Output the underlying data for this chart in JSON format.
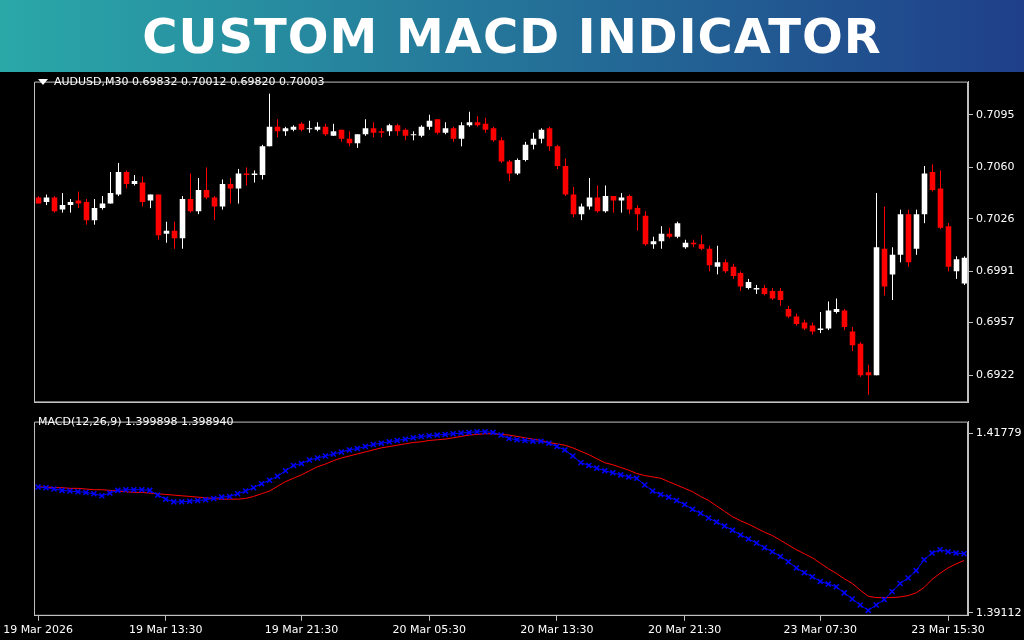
{
  "chart_data": [
    {
      "type": "candlestick",
      "title": "AUDUSD,M30 0.69832 0.70012 0.69820 0.70003",
      "annotations": [
        "CUSTOM MACD INDICATOR"
      ],
      "categories": [
        null,
        null,
        null,
        null,
        null,
        null,
        null,
        null,
        null,
        null,
        null,
        null,
        null,
        null,
        null,
        null,
        null,
        null,
        null,
        null,
        null,
        null,
        null,
        null,
        null,
        null,
        null,
        null,
        null,
        null,
        null,
        null,
        null,
        null,
        null,
        null,
        null,
        null,
        null,
        null,
        null,
        null,
        null,
        null,
        null,
        null,
        null,
        null,
        null,
        null,
        null,
        null,
        null,
        null,
        null,
        null,
        null,
        null,
        null,
        null,
        null,
        null,
        null,
        null,
        null,
        null,
        null,
        null,
        null,
        null,
        null,
        null,
        null,
        null,
        null,
        null,
        null,
        null,
        null,
        null,
        null,
        null,
        null,
        null,
        null,
        null,
        null,
        null,
        null,
        null,
        null,
        null,
        null,
        null,
        null,
        null,
        null,
        null,
        null,
        null,
        null,
        null,
        null,
        null,
        null,
        null,
        null,
        null,
        null,
        null,
        null,
        null,
        null,
        null,
        null,
        null,
        null
      ],
      "ohlc": [
        [
          0.704,
          0.7041,
          0.7036,
          0.7036
        ],
        [
          0.7037,
          0.7042,
          0.7035,
          0.704
        ],
        [
          0.704,
          0.7041,
          0.703,
          0.7031
        ],
        [
          0.7032,
          0.7043,
          0.703,
          0.7035
        ],
        [
          0.7035,
          0.7039,
          0.703,
          0.7037
        ],
        [
          0.7038,
          0.7044,
          0.7033,
          0.7036
        ],
        [
          0.7037,
          0.7039,
          0.7022,
          0.7025
        ],
        [
          0.7025,
          0.7039,
          0.7022,
          0.7033
        ],
        [
          0.7033,
          0.7041,
          0.7032,
          0.7036
        ],
        [
          0.7036,
          0.7057,
          0.7036,
          0.7043
        ],
        [
          0.7042,
          0.7063,
          0.7041,
          0.7057
        ],
        [
          0.7057,
          0.7058,
          0.7046,
          0.7049
        ],
        [
          0.7049,
          0.7055,
          0.7048,
          0.7051
        ],
        [
          0.705,
          0.7054,
          0.7034,
          0.7037
        ],
        [
          0.7038,
          0.7042,
          0.7033,
          0.7042
        ],
        [
          0.7042,
          0.7042,
          0.7012,
          0.7015
        ],
        [
          0.7016,
          0.7024,
          0.701,
          0.7018
        ],
        [
          0.7018,
          0.7024,
          0.7006,
          0.7013
        ],
        [
          0.7013,
          0.7041,
          0.7006,
          0.7039
        ],
        [
          0.7039,
          0.7056,
          0.703,
          0.7031
        ],
        [
          0.7031,
          0.7053,
          0.7029,
          0.7045
        ],
        [
          0.7045,
          0.706,
          0.7039,
          0.704
        ],
        [
          0.704,
          0.7041,
          0.7025,
          0.7034
        ],
        [
          0.7034,
          0.7052,
          0.7032,
          0.7049
        ],
        [
          0.7049,
          0.7053,
          0.7036,
          0.7046
        ],
        [
          0.7046,
          0.7059,
          0.7036,
          0.7056
        ],
        [
          0.7056,
          0.706,
          0.7048,
          0.7055
        ],
        [
          0.7055,
          0.7058,
          0.705,
          0.7056
        ],
        [
          0.7055,
          0.7075,
          0.7052,
          0.7074
        ],
        [
          0.7074,
          0.7109,
          0.7074,
          0.7087
        ],
        [
          0.7087,
          0.7092,
          0.708,
          0.7084
        ],
        [
          0.7084,
          0.7087,
          0.7081,
          0.7086
        ],
        [
          0.7085,
          0.7088,
          0.7084,
          0.7087
        ],
        [
          0.7089,
          0.709,
          0.7084,
          0.7085
        ],
        [
          0.7086,
          0.7091,
          0.7083,
          0.7086
        ],
        [
          0.7085,
          0.709,
          0.7084,
          0.7087
        ],
        [
          0.7087,
          0.7089,
          0.7081,
          0.7082
        ],
        [
          0.7081,
          0.7089,
          0.7081,
          0.7084
        ],
        [
          0.7085,
          0.7085,
          0.7077,
          0.7079
        ],
        [
          0.7079,
          0.7084,
          0.7074,
          0.7076
        ],
        [
          0.7076,
          0.7082,
          0.7073,
          0.7082
        ],
        [
          0.7082,
          0.7092,
          0.7081,
          0.7086
        ],
        [
          0.7086,
          0.709,
          0.708,
          0.7083
        ],
        [
          0.7084,
          0.7086,
          0.708,
          0.7083
        ],
        [
          0.7084,
          0.7089,
          0.7081,
          0.7088
        ],
        [
          0.7088,
          0.7089,
          0.7081,
          0.7084
        ],
        [
          0.7085,
          0.7086,
          0.7078,
          0.7081
        ],
        [
          0.7082,
          0.7084,
          0.7078,
          0.7082
        ],
        [
          0.7081,
          0.7088,
          0.708,
          0.7087
        ],
        [
          0.7087,
          0.7095,
          0.7085,
          0.7091
        ],
        [
          0.7092,
          0.7092,
          0.7082,
          0.7083
        ],
        [
          0.7083,
          0.709,
          0.7082,
          0.7086
        ],
        [
          0.7086,
          0.7087,
          0.7077,
          0.7079
        ],
        [
          0.7079,
          0.709,
          0.7074,
          0.7088
        ],
        [
          0.7088,
          0.7097,
          0.7087,
          0.709
        ],
        [
          0.709,
          0.7094,
          0.7087,
          0.7088
        ],
        [
          0.7089,
          0.7093,
          0.7083,
          0.7085
        ],
        [
          0.7086,
          0.7087,
          0.7077,
          0.7078
        ],
        [
          0.7078,
          0.708,
          0.7063,
          0.7064
        ],
        [
          0.7064,
          0.7065,
          0.7051,
          0.7056
        ],
        [
          0.7056,
          0.7066,
          0.7055,
          0.7065
        ],
        [
          0.7065,
          0.7077,
          0.7064,
          0.7075
        ],
        [
          0.7075,
          0.7083,
          0.7072,
          0.7079
        ],
        [
          0.7079,
          0.7086,
          0.7076,
          0.7085
        ],
        [
          0.7086,
          0.7087,
          0.7071,
          0.7074
        ],
        [
          0.7074,
          0.7075,
          0.7059,
          0.7061
        ],
        [
          0.7061,
          0.7066,
          0.7041,
          0.7042
        ],
        [
          0.7042,
          0.7047,
          0.7027,
          0.7029
        ],
        [
          0.7029,
          0.7036,
          0.7025,
          0.7034
        ],
        [
          0.7034,
          0.7053,
          0.7032,
          0.704
        ],
        [
          0.704,
          0.7048,
          0.703,
          0.7031
        ],
        [
          0.7031,
          0.7048,
          0.703,
          0.7041
        ],
        [
          0.7041,
          0.7041,
          0.703,
          0.7038
        ],
        [
          0.7038,
          0.7043,
          0.703,
          0.704
        ],
        [
          0.7041,
          0.7042,
          0.7029,
          0.7032
        ],
        [
          0.7033,
          0.7035,
          0.7018,
          0.7029
        ],
        [
          0.7028,
          0.7031,
          0.7008,
          0.7009
        ],
        [
          0.7009,
          0.7014,
          0.7006,
          0.7011
        ],
        [
          0.7011,
          0.7021,
          0.7006,
          0.7016
        ],
        [
          0.7016,
          0.702,
          0.7013,
          0.7014
        ],
        [
          0.7014,
          0.7024,
          0.7013,
          0.7023
        ],
        [
          0.7007,
          0.7012,
          0.7006,
          0.701
        ],
        [
          0.701,
          0.7012,
          0.7007,
          0.7009
        ],
        [
          0.7009,
          0.7015,
          0.7005,
          0.7006
        ],
        [
          0.7006,
          0.7008,
          0.6991,
          0.6995
        ],
        [
          0.6994,
          0.7008,
          0.6989,
          0.6997
        ],
        [
          0.6997,
          0.6999,
          0.699,
          0.6991
        ],
        [
          0.6994,
          0.6996,
          0.6986,
          0.6988
        ],
        [
          0.699,
          0.6991,
          0.6978,
          0.6981
        ],
        [
          0.698,
          0.6986,
          0.6979,
          0.6984
        ],
        [
          0.6979,
          0.6982,
          0.6976,
          0.698
        ],
        [
          0.698,
          0.6982,
          0.6975,
          0.6976
        ],
        [
          0.6978,
          0.698,
          0.6972,
          0.6973
        ],
        [
          0.6978,
          0.698,
          0.6968,
          0.6972
        ],
        [
          0.6966,
          0.6968,
          0.696,
          0.6961
        ],
        [
          0.6961,
          0.6963,
          0.6955,
          0.6956
        ],
        [
          0.6957,
          0.6959,
          0.6952,
          0.6953
        ],
        [
          0.6955,
          0.6957,
          0.6949,
          0.6951
        ],
        [
          0.6952,
          0.6964,
          0.695,
          0.6953
        ],
        [
          0.6953,
          0.6971,
          0.6952,
          0.6965
        ],
        [
          0.6964,
          0.6973,
          0.6963,
          0.6966
        ],
        [
          0.6965,
          0.6966,
          0.6952,
          0.6954
        ],
        [
          0.6951,
          0.6954,
          0.6938,
          0.6942
        ],
        [
          0.6943,
          0.6944,
          0.6921,
          0.6922
        ],
        [
          0.6924,
          0.6929,
          0.6909,
          0.6922
        ],
        [
          0.6922,
          0.7043,
          0.6922,
          0.7007
        ],
        [
          0.7006,
          0.7034,
          0.6975,
          0.6981
        ],
        [
          0.6989,
          0.7007,
          0.6972,
          0.7002
        ],
        [
          0.7002,
          0.7032,
          0.6997,
          0.7029
        ],
        [
          0.7029,
          0.7032,
          0.6994,
          0.6997
        ],
        [
          0.7006,
          0.7032,
          0.7002,
          0.7029
        ],
        [
          0.7029,
          0.7061,
          0.7023,
          0.7056
        ],
        [
          0.7057,
          0.7062,
          0.7044,
          0.7045
        ],
        [
          0.7046,
          0.7058,
          0.7019,
          0.702
        ],
        [
          0.7021,
          0.7023,
          0.6991,
          0.6994
        ],
        [
          0.6991,
          0.7001,
          0.6986,
          0.6999
        ],
        [
          0.6983,
          0.7001,
          0.6982,
          0.7
        ]
      ],
      "colors": [
        "#ff0000",
        "#ffffff",
        "#ff0000",
        "#ffffff",
        "#ffffff",
        "#ff0000",
        "#ff0000",
        "#ffffff",
        "#ffffff",
        "#ffffff",
        "#ffffff",
        "#ff0000",
        "#ffffff",
        "#ff0000",
        "#ffffff",
        "#ff0000",
        "#ffffff",
        "#ff0000",
        "#ffffff",
        "#ff0000",
        "#ffffff",
        "#ff0000",
        "#ff0000",
        "#ffffff",
        "#ff0000",
        "#ffffff",
        "#ff0000",
        "#ffffff",
        "#ffffff",
        "#ffffff",
        "#ff0000",
        "#ffffff",
        "#ffffff",
        "#ff0000",
        "#ffffff",
        "#ffffff",
        "#ff0000",
        "#ffffff",
        "#ff0000",
        "#ff0000",
        "#ffffff",
        "#ffffff",
        "#ff0000",
        "#ff0000",
        "#ffffff",
        "#ff0000",
        "#ff0000",
        "#ffffff",
        "#ffffff",
        "#ffffff",
        "#ff0000",
        "#ffffff",
        "#ff0000",
        "#ffffff",
        "#ffffff",
        "#ff0000",
        "#ff0000",
        "#ff0000",
        "#ff0000",
        "#ff0000",
        "#ffffff",
        "#ffffff",
        "#ffffff",
        "#ffffff",
        "#ff0000",
        "#ff0000",
        "#ff0000",
        "#ff0000",
        "#ffffff",
        "#ffffff",
        "#ff0000",
        "#ffffff",
        "#ff0000",
        "#ffffff",
        "#ff0000",
        "#ff0000",
        "#ff0000",
        "#ffffff",
        "#ffffff",
        "#ff0000",
        "#ffffff",
        "#ffffff",
        "#ff0000",
        "#ff0000",
        "#ff0000",
        "#ffffff",
        "#ff0000",
        "#ff0000",
        "#ff0000",
        "#ffffff",
        "#ffffff",
        "#ff0000",
        "#ff0000",
        "#ff0000",
        "#ff0000",
        "#ff0000",
        "#ff0000",
        "#ff0000",
        "#ffffff",
        "#ffffff",
        "#ffffff",
        "#ff0000",
        "#ff0000",
        "#ff0000",
        "#ff0000",
        "#ffffff",
        "#ff0000",
        "#ffffff",
        "#ffffff",
        "#ff0000",
        "#ffffff",
        "#ffffff",
        "#ff0000",
        "#ff0000",
        "#ff0000",
        "#ffffff",
        "#ffffff"
      ],
      "ylim": [
        0.6904,
        0.7117
      ],
      "yticks": [
        0.7095,
        {
          "value": 0.706,
          "label": "0.7060"
        },
        0.7026,
        0.6991,
        0.6957,
        0.6922
      ],
      "tick_labels": "y"
    },
    {
      "type": "line",
      "title": "MACD(12,26,9) 1.399898 1.398940",
      "categories": [
        "19 Mar 2026",
        null,
        null,
        null,
        null,
        null,
        null,
        null,
        null,
        null,
        null,
        null,
        null,
        null,
        null,
        null,
        "19 Mar 13:30",
        null,
        null,
        null,
        null,
        null,
        null,
        null,
        null,
        null,
        null,
        null,
        null,
        null,
        null,
        null,
        null,
        "19 Mar 21:30",
        null,
        null,
        null,
        null,
        null,
        null,
        null,
        null,
        null,
        null,
        null,
        null,
        null,
        null,
        null,
        "20 Mar 05:30",
        null,
        null,
        null,
        null,
        null,
        null,
        null,
        null,
        null,
        null,
        null,
        null,
        null,
        null,
        null,
        "20 Mar 13:30",
        null,
        null,
        null,
        null,
        null,
        null,
        null,
        null,
        null,
        null,
        null,
        null,
        null,
        null,
        null,
        "20 Mar 21:30",
        null,
        null,
        null,
        null,
        null,
        null,
        null,
        null,
        null,
        null,
        null,
        null,
        null,
        null,
        null,
        null,
        "23 Mar 07:30",
        null,
        null,
        null,
        null,
        null,
        null,
        null,
        null,
        null,
        null,
        null,
        null,
        null,
        null,
        null,
        "23 Mar 15:30",
        null,
        null
      ],
      "series": [
        {
          "color": "#0000ff",
          "marker": "cross",
          "values": [
            1.4098,
            1.4097,
            1.4095,
            1.4093,
            1.4092,
            1.4091,
            1.409,
            1.4088,
            1.4085,
            1.4089,
            1.4093,
            1.4094,
            1.4094,
            1.4094,
            1.4093,
            1.4086,
            1.408,
            1.4076,
            1.4076,
            1.4077,
            1.4078,
            1.4079,
            1.4081,
            1.4083,
            1.4084,
            1.4088,
            1.4092,
            1.4097,
            1.4103,
            1.4108,
            1.4114,
            1.4122,
            1.413,
            1.4133,
            1.4138,
            1.4141,
            1.4144,
            1.4147,
            1.415,
            1.4153,
            1.4155,
            1.4158,
            1.4161,
            1.4163,
            1.4165,
            1.4167,
            1.4169,
            1.4171,
            1.4173,
            1.4174,
            1.4175,
            1.4176,
            1.4177,
            1.4178,
            1.4179,
            1.418,
            1.418,
            1.4179,
            1.4175,
            1.417,
            1.4168,
            1.4167,
            1.4166,
            1.4166,
            1.4163,
            1.4158,
            1.4153,
            1.4144,
            1.4134,
            1.413,
            1.4126,
            1.4122,
            1.4119,
            1.4116,
            1.4113,
            1.4111,
            1.4101,
            1.4092,
            1.4087,
            1.4083,
            1.4078,
            1.4072,
            1.4065,
            1.4059,
            1.4052,
            1.4046,
            1.404,
            1.4034,
            1.4027,
            1.4021,
            1.4015,
            1.4008,
            1.4002,
            1.3995,
            1.3987,
            1.3978,
            1.3971,
            1.3965,
            1.3958,
            1.3954,
            1.395,
            1.3941,
            1.3932,
            1.3923,
            1.3915,
            1.3923,
            1.3931,
            1.3943,
            1.3955,
            1.3963,
            1.3974,
            1.399,
            1.4,
            1.4005,
            1.4002,
            1.4,
            1.3999
          ]
        },
        {
          "color": "#ff0000",
          "marker": "none",
          "values": [
            1.4098,
            1.4098,
            1.4097,
            1.4097,
            1.4096,
            1.4096,
            1.4095,
            1.4094,
            1.4094,
            1.4093,
            1.4092,
            1.4091,
            1.409,
            1.409,
            1.4089,
            1.4088,
            1.4087,
            1.4086,
            1.4085,
            1.4084,
            1.4083,
            1.4082,
            1.4081,
            1.408,
            1.408,
            1.408,
            1.4081,
            1.4084,
            1.4088,
            1.4092,
            1.4099,
            1.4106,
            1.4111,
            1.4116,
            1.4122,
            1.4128,
            1.4132,
            1.4137,
            1.4141,
            1.4144,
            1.4147,
            1.415,
            1.4153,
            1.4156,
            1.4158,
            1.416,
            1.4162,
            1.4164,
            1.4165,
            1.4167,
            1.4168,
            1.4169,
            1.4171,
            1.4173,
            1.4175,
            1.4176,
            1.4177,
            1.4177,
            1.4176,
            1.4175,
            1.4173,
            1.4171,
            1.4169,
            1.4167,
            1.4164,
            1.4162,
            1.416,
            1.4156,
            1.4151,
            1.4146,
            1.414,
            1.4134,
            1.4131,
            1.4127,
            1.4123,
            1.4118,
            1.4115,
            1.4113,
            1.4111,
            1.4106,
            1.4101,
            1.4096,
            1.4091,
            1.4084,
            1.4078,
            1.407,
            1.4062,
            1.4054,
            1.4048,
            1.4043,
            1.4037,
            1.4031,
            1.4026,
            1.4019,
            1.4012,
            1.4005,
            1.3999,
            1.3993,
            1.3985,
            1.3977,
            1.397,
            1.3962,
            1.3955,
            1.3945,
            1.3936,
            1.3934,
            1.3934,
            1.3934,
            1.3935,
            1.3937,
            1.3941,
            1.3949,
            1.3961,
            1.397,
            1.3978,
            1.3984,
            1.3989
          ]
        }
      ],
      "ylim": [
        1.3907,
        1.4195
      ],
      "yticks": [
        1.41779,
        1.39112
      ]
    }
  ]
}
